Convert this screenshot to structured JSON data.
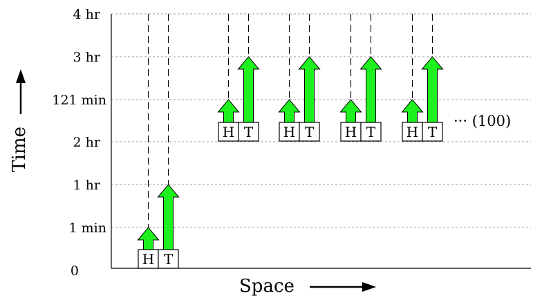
{
  "y_axis": {
    "title": "Time",
    "ticks": [
      "0",
      "1 min",
      "1 hr",
      "2 hr",
      "121 min",
      "3 hr",
      "4 hr"
    ]
  },
  "x_axis": {
    "title": "Space"
  },
  "groups": [
    {
      "head_label": "H",
      "tail_label": "T",
      "level": "0"
    },
    {
      "head_label": "H",
      "tail_label": "T",
      "level": "2 hr"
    },
    {
      "head_label": "H",
      "tail_label": "T",
      "level": "2 hr"
    },
    {
      "head_label": "H",
      "tail_label": "T",
      "level": "2 hr"
    },
    {
      "head_label": "H",
      "tail_label": "T",
      "level": "2 hr"
    }
  ],
  "ellipsis_label": "··· (100)",
  "colors": {
    "arrow_fill": "#1ef21e",
    "arrow_stroke": "#000000",
    "grid": "#9a9a9a"
  }
}
